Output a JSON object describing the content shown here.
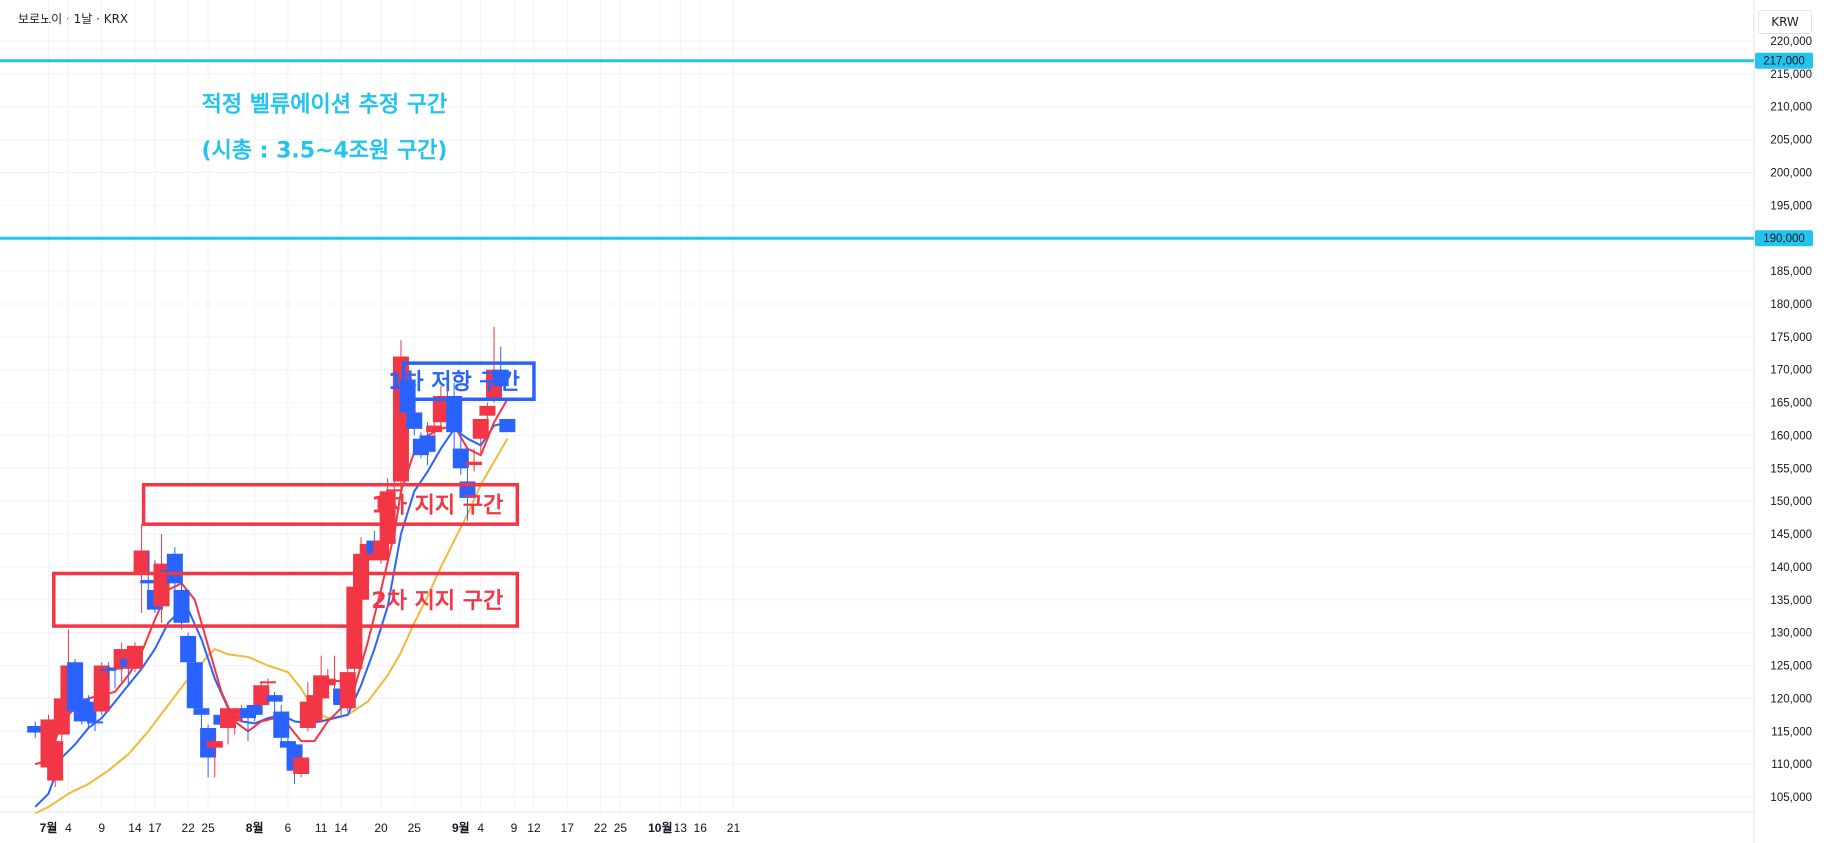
{
  "header": {
    "symbol_line": "보로노이 · 1날 · KRX",
    "currency": "KRW"
  },
  "chart_data": {
    "type": "candlestick",
    "y_axis": {
      "min": 102000,
      "max": 222000,
      "side": "right",
      "ticks": [
        "220,000",
        "215,000",
        "210,000",
        "205,000",
        "200,000",
        "195,000",
        "190,000",
        "185,000",
        "180,000",
        "175,000",
        "170,000",
        "165,000",
        "160,000",
        "155,000",
        "150,000",
        "145,000",
        "140,000",
        "135,000",
        "130,000",
        "125,000",
        "120,000",
        "115,000",
        "110,000",
        "105,000"
      ],
      "tick_values": [
        220000,
        215000,
        210000,
        205000,
        200000,
        195000,
        190000,
        185000,
        180000,
        175000,
        170000,
        165000,
        160000,
        155000,
        150000,
        145000,
        140000,
        135000,
        130000,
        125000,
        120000,
        115000,
        110000,
        105000
      ]
    },
    "x_axis": {
      "labels": [
        {
          "text": "7월",
          "bold": true,
          "day": 0
        },
        {
          "text": "4",
          "day": 3
        },
        {
          "text": "9",
          "day": 8
        },
        {
          "text": "14",
          "day": 13
        },
        {
          "text": "17",
          "day": 16
        },
        {
          "text": "22",
          "day": 21
        },
        {
          "text": "25",
          "day": 24
        },
        {
          "text": "8월",
          "bold": true,
          "day": 31
        },
        {
          "text": "6",
          "day": 36
        },
        {
          "text": "11",
          "day": 41
        },
        {
          "text": "14",
          "day": 44
        },
        {
          "text": "20",
          "day": 50
        },
        {
          "text": "25",
          "day": 55
        },
        {
          "text": "9월",
          "bold": true,
          "day": 62
        },
        {
          "text": "4",
          "day": 65
        },
        {
          "text": "9",
          "day": 70
        },
        {
          "text": "12",
          "day": 73
        },
        {
          "text": "17",
          "day": 78
        },
        {
          "text": "22",
          "day": 83
        },
        {
          "text": "25",
          "day": 86
        },
        {
          "text": "10월",
          "bold": true,
          "day": 92
        },
        {
          "text": "13",
          "day": 95
        },
        {
          "text": "16",
          "day": 98
        },
        {
          "text": "21",
          "day": 103
        }
      ]
    },
    "candles": [
      {
        "day": -2,
        "o": 115800,
        "h": 116500,
        "l": 114000,
        "c": 114800
      },
      {
        "day": 0,
        "o": 109500,
        "h": 117500,
        "l": 108500,
        "c": 116800
      },
      {
        "day": 1,
        "o": 107500,
        "h": 114500,
        "l": 106500,
        "c": 113500
      },
      {
        "day": 2,
        "o": 114500,
        "h": 124000,
        "l": 113500,
        "c": 120000
      },
      {
        "day": 3,
        "o": 119800,
        "h": 130500,
        "l": 118500,
        "c": 125000
      },
      {
        "day": 4,
        "o": 125500,
        "h": 126000,
        "l": 117500,
        "c": 118000
      },
      {
        "day": 5,
        "o": 120000,
        "h": 122500,
        "l": 116000,
        "c": 116500
      },
      {
        "day": 6,
        "o": 119500,
        "h": 120500,
        "l": 115500,
        "c": 116500
      },
      {
        "day": 7,
        "o": 116500,
        "h": 117500,
        "l": 115000,
        "c": 116200
      },
      {
        "day": 8,
        "o": 118000,
        "h": 125500,
        "l": 117500,
        "c": 125000
      },
      {
        "day": 9,
        "o": 124500,
        "h": 125500,
        "l": 123000,
        "c": 124300
      },
      {
        "day": 10,
        "o": 124700,
        "h": 126000,
        "l": 121500,
        "c": 124500
      },
      {
        "day": 11,
        "o": 124500,
        "h": 128500,
        "l": 122500,
        "c": 127500
      },
      {
        "day": 12,
        "o": 126000,
        "h": 127500,
        "l": 122000,
        "c": 124800
      },
      {
        "day": 13,
        "o": 124500,
        "h": 128500,
        "l": 124000,
        "c": 128000
      },
      {
        "day": 14,
        "o": 139000,
        "h": 146500,
        "l": 133000,
        "c": 142500
      },
      {
        "day": 15,
        "o": 138000,
        "h": 142500,
        "l": 136500,
        "c": 137500
      },
      {
        "day": 16,
        "o": 136500,
        "h": 141000,
        "l": 133000,
        "c": 133500
      },
      {
        "day": 17,
        "o": 134000,
        "h": 145000,
        "l": 131500,
        "c": 140500
      },
      {
        "day": 18,
        "o": 139500,
        "h": 140000,
        "l": 138000,
        "c": 139000
      },
      {
        "day": 19,
        "o": 142000,
        "h": 143000,
        "l": 136500,
        "c": 137500
      },
      {
        "day": 20,
        "o": 136500,
        "h": 138500,
        "l": 130500,
        "c": 131500
      },
      {
        "day": 21,
        "o": 129500,
        "h": 130000,
        "l": 125000,
        "c": 125500
      },
      {
        "day": 22,
        "o": 125500,
        "h": 126000,
        "l": 118000,
        "c": 118500
      },
      {
        "day": 23,
        "o": 118500,
        "h": 119000,
        "l": 115500,
        "c": 117500
      },
      {
        "day": 24,
        "o": 115500,
        "h": 116000,
        "l": 108000,
        "c": 111000
      },
      {
        "day": 25,
        "o": 112500,
        "h": 114000,
        "l": 108000,
        "c": 113500
      },
      {
        "day": 26,
        "o": 117500,
        "h": 118500,
        "l": 115500,
        "c": 116000
      },
      {
        "day": 27,
        "o": 115500,
        "h": 119000,
        "l": 113000,
        "c": 118500
      },
      {
        "day": 28,
        "o": 116500,
        "h": 118000,
        "l": 114500,
        "c": 117500
      },
      {
        "day": 29,
        "o": 117500,
        "h": 119000,
        "l": 117000,
        "c": 118500
      },
      {
        "day": 30,
        "o": 118500,
        "h": 119000,
        "l": 113500,
        "c": 117000
      },
      {
        "day": 31,
        "o": 119000,
        "h": 120500,
        "l": 116500,
        "c": 117500
      },
      {
        "day": 32,
        "o": 119000,
        "h": 122500,
        "l": 118500,
        "c": 122000
      },
      {
        "day": 33,
        "o": 122500,
        "h": 123000,
        "l": 122000,
        "c": 122600
      },
      {
        "day": 34,
        "o": 120500,
        "h": 121000,
        "l": 114500,
        "c": 119500
      },
      {
        "day": 35,
        "o": 118000,
        "h": 119000,
        "l": 113500,
        "c": 114000
      },
      {
        "day": 36,
        "o": 113500,
        "h": 114000,
        "l": 111500,
        "c": 112500
      },
      {
        "day": 37,
        "o": 113000,
        "h": 113500,
        "l": 107000,
        "c": 109000
      },
      {
        "day": 38,
        "o": 108500,
        "h": 111500,
        "l": 108000,
        "c": 111000
      },
      {
        "day": 39,
        "o": 115500,
        "h": 122500,
        "l": 115000,
        "c": 119500
      },
      {
        "day": 40,
        "o": 116500,
        "h": 121000,
        "l": 116000,
        "c": 120500
      },
      {
        "day": 41,
        "o": 120000,
        "h": 126500,
        "l": 119500,
        "c": 123500
      },
      {
        "day": 42,
        "o": 122000,
        "h": 124500,
        "l": 121500,
        "c": 123000
      },
      {
        "day": 43,
        "o": 122500,
        "h": 126500,
        "l": 121500,
        "c": 122800
      },
      {
        "day": 44,
        "o": 121500,
        "h": 121500,
        "l": 117500,
        "c": 119000
      },
      {
        "day": 45,
        "o": 118500,
        "h": 124500,
        "l": 118000,
        "c": 124000
      },
      {
        "day": 46,
        "o": 124500,
        "h": 137000,
        "l": 124000,
        "c": 137000
      },
      {
        "day": 47,
        "o": 135000,
        "h": 144500,
        "l": 134500,
        "c": 142000
      },
      {
        "day": 48,
        "o": 141000,
        "h": 143500,
        "l": 140500,
        "c": 143500
      },
      {
        "day": 49,
        "o": 144000,
        "h": 145500,
        "l": 141000,
        "c": 142000
      },
      {
        "day": 50,
        "o": 141000,
        "h": 144500,
        "l": 140500,
        "c": 144000
      },
      {
        "day": 51,
        "o": 143500,
        "h": 153500,
        "l": 142500,
        "c": 151500
      },
      {
        "day": 52,
        "o": 151500,
        "h": 153500,
        "l": 151000,
        "c": 151800
      },
      {
        "day": 53,
        "o": 153000,
        "h": 174500,
        "l": 150500,
        "c": 172000
      },
      {
        "day": 54,
        "o": 168500,
        "h": 169500,
        "l": 162000,
        "c": 163500
      },
      {
        "day": 55,
        "o": 163500,
        "h": 164500,
        "l": 160000,
        "c": 161000
      },
      {
        "day": 56,
        "o": 159500,
        "h": 160500,
        "l": 156500,
        "c": 157000
      },
      {
        "day": 57,
        "o": 160000,
        "h": 162000,
        "l": 155500,
        "c": 157500
      },
      {
        "day": 58,
        "o": 160500,
        "h": 162000,
        "l": 159500,
        "c": 161500
      },
      {
        "day": 59,
        "o": 162000,
        "h": 167500,
        "l": 161000,
        "c": 166000
      },
      {
        "day": 60,
        "o": 164500,
        "h": 167500,
        "l": 164000,
        "c": 165000
      },
      {
        "day": 61,
        "o": 166000,
        "h": 168000,
        "l": 155500,
        "c": 160500
      },
      {
        "day": 62,
        "o": 158000,
        "h": 160500,
        "l": 154000,
        "c": 155000
      },
      {
        "day": 63,
        "o": 153000,
        "h": 155000,
        "l": 147000,
        "c": 150500
      },
      {
        "day": 64,
        "o": 155500,
        "h": 158000,
        "l": 154500,
        "c": 156000
      },
      {
        "day": 65,
        "o": 159500,
        "h": 162500,
        "l": 157000,
        "c": 162500
      },
      {
        "day": 66,
        "o": 163000,
        "h": 165000,
        "l": 162500,
        "c": 164500
      },
      {
        "day": 67,
        "o": 165500,
        "h": 176500,
        "l": 165000,
        "c": 170000
      },
      {
        "day": 68,
        "o": 170000,
        "h": 173500,
        "l": 166500,
        "c": 167500
      },
      {
        "day": 69,
        "o": 162500,
        "h": 162500,
        "l": 160500,
        "c": 160500
      }
    ],
    "series": [
      {
        "name": "",
        "color": "#f0ba36",
        "points": [
          [
            -2,
            102500
          ],
          [
            0,
            103500
          ],
          [
            3,
            105500
          ],
          [
            6,
            107000
          ],
          [
            9,
            109000
          ],
          [
            12,
            111500
          ],
          [
            15,
            115000
          ],
          [
            18,
            119000
          ],
          [
            21,
            123000
          ],
          [
            24,
            126500
          ],
          [
            25,
            127500
          ],
          [
            27,
            126700
          ],
          [
            30,
            126300
          ],
          [
            33,
            125000
          ],
          [
            36,
            124000
          ],
          [
            38,
            121500
          ],
          [
            40,
            118000
          ],
          [
            42,
            117000
          ],
          [
            45,
            117500
          ],
          [
            48,
            119500
          ],
          [
            51,
            123500
          ],
          [
            53,
            127000
          ],
          [
            55,
            131500
          ],
          [
            57,
            135500
          ],
          [
            59,
            140000
          ],
          [
            61,
            144000
          ],
          [
            63,
            148000
          ],
          [
            65,
            152500
          ],
          [
            67,
            156000
          ],
          [
            69,
            159500
          ]
        ]
      },
      {
        "name": "",
        "color": "#2962ff",
        "points": [
          [
            -2,
            103500
          ],
          [
            0,
            105500
          ],
          [
            2,
            111000
          ],
          [
            4,
            113000
          ],
          [
            6,
            115500
          ],
          [
            8,
            117000
          ],
          [
            10,
            119500
          ],
          [
            12,
            122000
          ],
          [
            14,
            124500
          ],
          [
            16,
            127500
          ],
          [
            18,
            131500
          ],
          [
            20,
            133500
          ],
          [
            21,
            133500
          ],
          [
            23,
            129000
          ],
          [
            25,
            123000
          ],
          [
            27,
            118500
          ],
          [
            29,
            116500
          ],
          [
            31,
            116200
          ],
          [
            33,
            117000
          ],
          [
            35,
            117500
          ],
          [
            37,
            116500
          ],
          [
            39,
            116200
          ],
          [
            41,
            116500
          ],
          [
            43,
            117000
          ],
          [
            45,
            117500
          ],
          [
            47,
            122000
          ],
          [
            49,
            127500
          ],
          [
            51,
            134000
          ],
          [
            53,
            145000
          ],
          [
            55,
            151500
          ],
          [
            57,
            154500
          ],
          [
            59,
            158000
          ],
          [
            61,
            161000
          ],
          [
            63,
            159500
          ],
          [
            65,
            158500
          ],
          [
            67,
            161500
          ],
          [
            69,
            162000
          ]
        ]
      },
      {
        "name": "",
        "color": "#f23645",
        "points": [
          [
            -2,
            110000
          ],
          [
            0,
            110500
          ],
          [
            2,
            116500
          ],
          [
            4,
            118500
          ],
          [
            6,
            120000
          ],
          [
            8,
            120500
          ],
          [
            10,
            121000
          ],
          [
            12,
            123500
          ],
          [
            14,
            127000
          ],
          [
            16,
            132000
          ],
          [
            18,
            136500
          ],
          [
            20,
            137500
          ],
          [
            22,
            135000
          ],
          [
            24,
            128000
          ],
          [
            26,
            121000
          ],
          [
            28,
            116500
          ],
          [
            30,
            115000
          ],
          [
            32,
            116500
          ],
          [
            34,
            117000
          ],
          [
            36,
            116000
          ],
          [
            38,
            113500
          ],
          [
            40,
            113500
          ],
          [
            42,
            116500
          ],
          [
            44,
            118500
          ],
          [
            46,
            121500
          ],
          [
            48,
            128500
          ],
          [
            50,
            136500
          ],
          [
            52,
            145000
          ],
          [
            53,
            151500
          ],
          [
            55,
            157500
          ],
          [
            57,
            160000
          ],
          [
            59,
            161000
          ],
          [
            61,
            161500
          ],
          [
            63,
            158000
          ],
          [
            65,
            157000
          ],
          [
            67,
            162000
          ],
          [
            69,
            165500
          ]
        ]
      }
    ],
    "horizontal_lines": [
      {
        "value": 217000,
        "label": "217,000",
        "color": "#22c4ee"
      },
      {
        "value": 190000,
        "label": "190,000",
        "color": "#22c4ee"
      }
    ],
    "zones": [
      {
        "label": "1차 저항 구간",
        "top": 171000,
        "bottom": 165500,
        "day_start": 53.4,
        "day_end": 73.0,
        "color": "#2962ff",
        "label_color": "#2962ff"
      },
      {
        "label": "1차 지지 구간",
        "top": 152500,
        "bottom": 146500,
        "day_start": 14.3,
        "day_end": 70.5,
        "color": "#f23645",
        "label_color": "#f23645"
      },
      {
        "label": "2차 지지 구간",
        "top": 139000,
        "bottom": 131000,
        "day_start": 0.8,
        "day_end": 70.5,
        "color": "#f23645",
        "label_color": "#f23645"
      }
    ],
    "annotations": [
      {
        "text": "적정 벨류에이션 추정 구간",
        "value": 210500,
        "day": 41.5,
        "color": "#22c4ee"
      },
      {
        "text": "(시총 : 3.5~4조원 구간)",
        "value": 203500,
        "day": 41.5,
        "color": "#22c4ee"
      }
    ],
    "up_color": "#f23645",
    "down_color": "#2962ff"
  }
}
